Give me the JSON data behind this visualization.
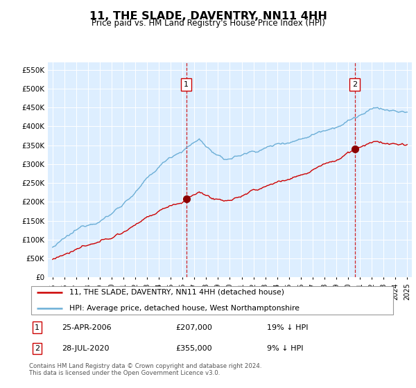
{
  "title": "11, THE SLADE, DAVENTRY, NN11 4HH",
  "subtitle": "Price paid vs. HM Land Registry's House Price Index (HPI)",
  "hpi_label": "HPI: Average price, detached house, West Northamptonshire",
  "price_label": "11, THE SLADE, DAVENTRY, NN11 4HH (detached house)",
  "footnote": "Contains HM Land Registry data © Crown copyright and database right 2024.\nThis data is licensed under the Open Government Licence v3.0.",
  "sale1_date": "25-APR-2006",
  "sale1_price": 207000,
  "sale1_label": "£207,000",
  "sale1_pct": "19% ↓ HPI",
  "sale1_year": 2006.32,
  "sale2_date": "28-JUL-2020",
  "sale2_price": 355000,
  "sale2_label": "£355,000",
  "sale2_pct": "9% ↓ HPI",
  "sale2_year": 2020.58,
  "hpi_color": "#6baed6",
  "price_color": "#cc0000",
  "dashed_line_color": "#cc0000",
  "bg_color": "#ddeeff",
  "grid_color": "#ffffff",
  "ylim": [
    0,
    570000
  ],
  "yticks": [
    0,
    50000,
    100000,
    150000,
    200000,
    250000,
    300000,
    350000,
    400000,
    450000,
    500000,
    550000
  ],
  "xstart": 1995,
  "xend": 2025
}
